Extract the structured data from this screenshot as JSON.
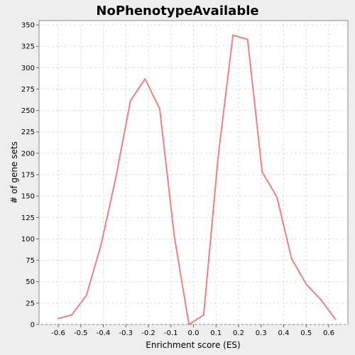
{
  "chart_data": {
    "type": "line",
    "title": "NoPhenotypeAvailable",
    "xlabel": "Enrichment score (ES)",
    "ylabel": "# of gene sets",
    "xlim": [
      -0.685,
      0.685
    ],
    "ylim": [
      0,
      355
    ],
    "x_ticks": [
      "-0.6",
      "-0.5",
      "-0.4",
      "-0.3",
      "-0.2",
      "-0.1",
      "0.0",
      "0.1",
      "0.2",
      "0.3",
      "0.4",
      "0.5",
      "0.6"
    ],
    "x_tick_values": [
      -0.6,
      -0.5,
      -0.4,
      -0.3,
      -0.2,
      -0.1,
      0.0,
      0.1,
      0.2,
      0.3,
      0.4,
      0.5,
      0.6
    ],
    "y_ticks": [
      "0",
      "25",
      "50",
      "75",
      "100",
      "125",
      "150",
      "175",
      "200",
      "225",
      "250",
      "275",
      "300",
      "325",
      "350"
    ],
    "y_tick_values": [
      0,
      25,
      50,
      75,
      100,
      125,
      150,
      175,
      200,
      225,
      250,
      275,
      300,
      325,
      350
    ],
    "grid": true,
    "line_color": "#f08080",
    "plot_background": "#ffffff",
    "series": [
      {
        "x": [
          -0.6,
          -0.54,
          -0.475,
          -0.41,
          -0.345,
          -0.28,
          -0.215,
          -0.15,
          -0.085,
          -0.02,
          0.045,
          0.11,
          0.175,
          0.24,
          0.305,
          0.37,
          0.435,
          0.5,
          0.565,
          0.63
        ],
        "values": [
          7,
          11,
          34,
          93,
          171,
          261,
          287,
          252,
          103,
          0,
          11,
          197,
          338,
          333,
          178,
          149,
          77,
          47,
          29,
          6
        ]
      }
    ]
  }
}
